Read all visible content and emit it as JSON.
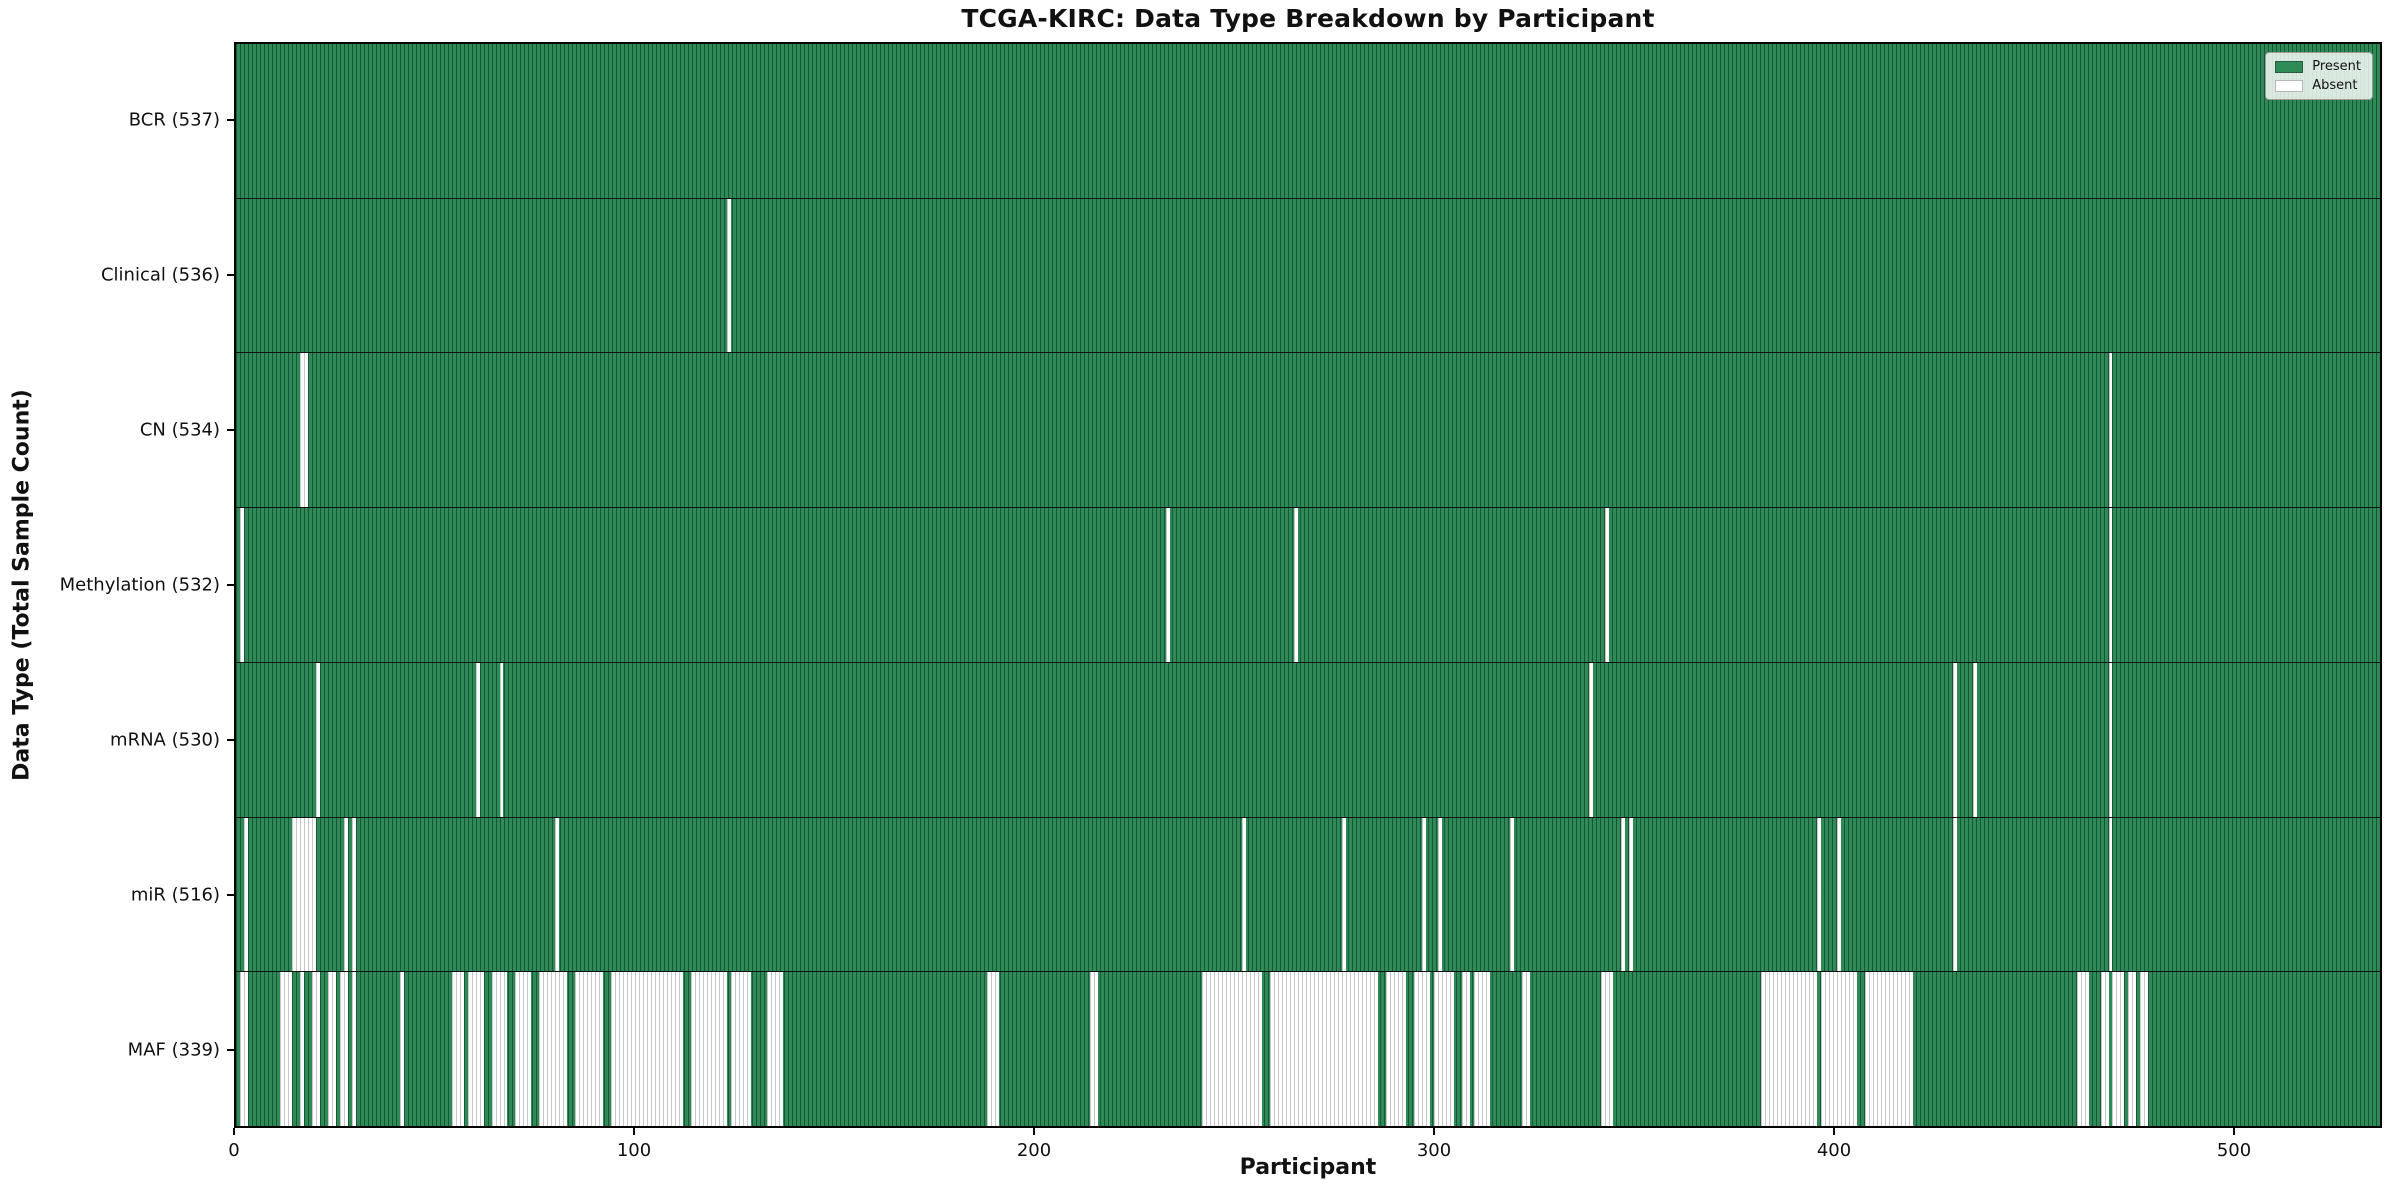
{
  "title": "TCGA-KIRC: Data Type Breakdown by Participant",
  "xlabel": "Participant",
  "ylabel": "Data Type (Total Sample Count)",
  "legend": {
    "present_label": "Present",
    "absent_label": "Absent"
  },
  "colors": {
    "present": "#2e8b57",
    "absent": "#ffffff",
    "row_separator": "#101010"
  },
  "chart_data": {
    "type": "heatmap",
    "title": "TCGA-KIRC: Data Type Breakdown by Participant",
    "xlabel": "Participant",
    "ylabel": "Data Type (Total Sample Count)",
    "n_participants": 537,
    "x_ticks": [
      0,
      100,
      200,
      300,
      400,
      500
    ],
    "legend_position": "upper right",
    "grid": false,
    "value_encoding": {
      "present": "#2e8b57",
      "absent": "#ffffff"
    },
    "rows": [
      {
        "label": "BCR (537)",
        "data_type": "BCR",
        "present_count": 537,
        "absent_runs": []
      },
      {
        "label": "Clinical (536)",
        "data_type": "Clinical",
        "present_count": 536,
        "absent_runs": [
          [
            123,
            123
          ]
        ]
      },
      {
        "label": "CN (534)",
        "data_type": "CN",
        "present_count": 534,
        "absent_runs": [
          [
            16,
            17
          ],
          [
            469,
            469
          ]
        ]
      },
      {
        "label": "Methylation (532)",
        "data_type": "Methylation",
        "present_count": 532,
        "absent_runs": [
          [
            1,
            1
          ],
          [
            233,
            233
          ],
          [
            265,
            265
          ],
          [
            343,
            343
          ],
          [
            469,
            469
          ]
        ]
      },
      {
        "label": "mRNA (530)",
        "data_type": "mRNA",
        "present_count": 530,
        "absent_runs": [
          [
            20,
            20
          ],
          [
            60,
            60
          ],
          [
            66,
            66
          ],
          [
            339,
            339
          ],
          [
            430,
            430
          ],
          [
            435,
            435
          ],
          [
            469,
            469
          ]
        ]
      },
      {
        "label": "miR (516)",
        "data_type": "miR",
        "present_count": 516,
        "absent_runs": [
          [
            2,
            2
          ],
          [
            14,
            19
          ],
          [
            27,
            27
          ],
          [
            29,
            29
          ],
          [
            80,
            80
          ],
          [
            252,
            252
          ],
          [
            277,
            277
          ],
          [
            297,
            297
          ],
          [
            301,
            301
          ],
          [
            319,
            319
          ],
          [
            347,
            347
          ],
          [
            349,
            349
          ],
          [
            396,
            396
          ],
          [
            401,
            401
          ],
          [
            430,
            430
          ],
          [
            469,
            469
          ]
        ]
      },
      {
        "label": "MAF (339)",
        "data_type": "MAF",
        "present_count": 339,
        "absent_runs": [
          [
            1,
            2
          ],
          [
            11,
            13
          ],
          [
            16,
            16
          ],
          [
            19,
            20
          ],
          [
            23,
            24
          ],
          [
            26,
            27
          ],
          [
            29,
            29
          ],
          [
            41,
            41
          ],
          [
            54,
            56
          ],
          [
            58,
            61
          ],
          [
            64,
            67
          ],
          [
            70,
            73
          ],
          [
            76,
            82
          ],
          [
            85,
            91
          ],
          [
            94,
            111
          ],
          [
            114,
            122
          ],
          [
            124,
            128
          ],
          [
            133,
            136
          ],
          [
            188,
            190
          ],
          [
            214,
            215
          ],
          [
            242,
            256
          ],
          [
            259,
            285
          ],
          [
            288,
            292
          ],
          [
            295,
            298
          ],
          [
            300,
            304
          ],
          [
            307,
            308
          ],
          [
            310,
            313
          ],
          [
            322,
            323
          ],
          [
            342,
            344
          ],
          [
            382,
            395
          ],
          [
            397,
            405
          ],
          [
            408,
            419
          ],
          [
            461,
            463
          ],
          [
            467,
            468
          ],
          [
            470,
            472
          ],
          [
            474,
            475
          ],
          [
            477,
            478
          ]
        ]
      }
    ]
  }
}
